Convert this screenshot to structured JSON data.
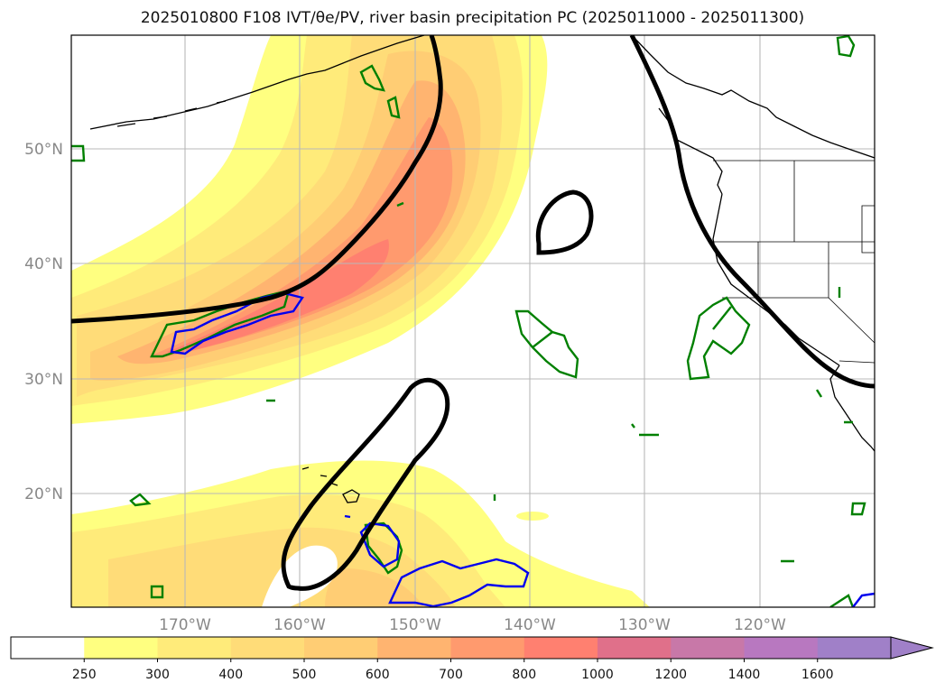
{
  "title": "2025010800 F108 IVT/θe/PV, river basin precipitation PC (2025011000 - 2025011300)",
  "map": {
    "lat_labels": [
      "50°N",
      "40°N",
      "30°N",
      "20°N"
    ],
    "lon_labels": [
      "170°W",
      "160°W",
      "150°W",
      "140°W",
      "130°W",
      "120°W"
    ],
    "lon_range": [
      180,
      110
    ],
    "lat_range": [
      10,
      60
    ],
    "gridlines": true
  },
  "colorbar": {
    "ticks": [
      "250",
      "300",
      "400",
      "500",
      "600",
      "700",
      "800",
      "1000",
      "1200",
      "1400",
      "1600"
    ],
    "colors": [
      "#ffffff",
      "#ffff80",
      "#ffeb7a",
      "#ffdc78",
      "#ffcd74",
      "#ffb470",
      "#ff9a6e",
      "#ff8070",
      "#e0708a",
      "#c878a8",
      "#b878c0",
      "#a080c8"
    ],
    "extend": "max"
  }
}
